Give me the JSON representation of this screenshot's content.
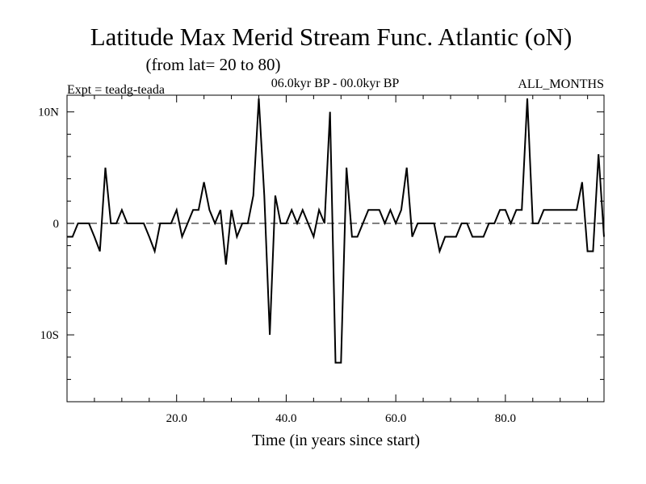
{
  "chart_data": {
    "type": "line",
    "title": "Latitude Max Merid Stream Func. Atlantic (oN)",
    "subtitle": "(from lat= 20 to 80)",
    "experiment_label": "Expt = teadg-teada",
    "period_label": "06.0kyr BP - 00.0kyr BP",
    "months_label": "ALL_MONTHS",
    "xlabel": "Time (in years since start)",
    "ylabel": "",
    "xlim": [
      0,
      98
    ],
    "ylim": [
      -16,
      11.5
    ],
    "x_ticks": [
      20,
      40,
      60,
      80
    ],
    "x_tick_labels": [
      "20.0",
      "40.0",
      "60.0",
      "80.0"
    ],
    "y_ticks": [
      10,
      0,
      -10
    ],
    "y_tick_labels": [
      "10N",
      "0",
      "10S"
    ],
    "reference_line": 0,
    "series": [
      {
        "name": "latitude max",
        "x": [
          0,
          1,
          2,
          3,
          4,
          5,
          6,
          7,
          8,
          9,
          10,
          11,
          12,
          13,
          14,
          15,
          16,
          17,
          18,
          19,
          20,
          21,
          22,
          23,
          24,
          25,
          26,
          27,
          28,
          29,
          30,
          31,
          32,
          33,
          34,
          35,
          36,
          37,
          38,
          39,
          40,
          41,
          42,
          43,
          44,
          45,
          46,
          47,
          48,
          49,
          50,
          51,
          52,
          53,
          54,
          55,
          56,
          57,
          58,
          59,
          60,
          61,
          62,
          63,
          64,
          65,
          66,
          67,
          68,
          69,
          70,
          71,
          72,
          73,
          74,
          75,
          76,
          77,
          78,
          79,
          80,
          81,
          82,
          83,
          84,
          85,
          86,
          87,
          88,
          89,
          90,
          91,
          92,
          93,
          94,
          95,
          96,
          97,
          98
        ],
        "values": [
          -1.2,
          -1.2,
          0,
          0,
          0,
          -1.2,
          -2.5,
          5,
          0,
          0,
          1.2,
          0,
          0,
          0,
          0,
          -1.2,
          -2.5,
          0,
          0,
          0,
          1.2,
          -1.2,
          0,
          1.2,
          1.2,
          3.7,
          1.2,
          0,
          1.2,
          -3.7,
          1.2,
          -1.2,
          0,
          0,
          2.5,
          11.2,
          2.5,
          -10,
          2.5,
          0,
          0,
          1.2,
          0,
          1.2,
          0,
          -1.2,
          1.2,
          0,
          10,
          -12.5,
          -12.5,
          5,
          -1.2,
          -1.2,
          0,
          1.2,
          1.2,
          1.2,
          0,
          1.2,
          0,
          1.2,
          5,
          -1.2,
          0,
          0,
          0,
          0,
          -2.5,
          -1.2,
          -1.2,
          -1.2,
          0,
          0,
          -1.2,
          -1.2,
          -1.2,
          0,
          0,
          1.2,
          1.2,
          0,
          1.2,
          1.2,
          11.2,
          0,
          0,
          1.2,
          1.2,
          1.2,
          1.2,
          1.2,
          1.2,
          1.2,
          3.7,
          -2.5,
          -2.5,
          6.2,
          -1.2
        ]
      }
    ]
  }
}
